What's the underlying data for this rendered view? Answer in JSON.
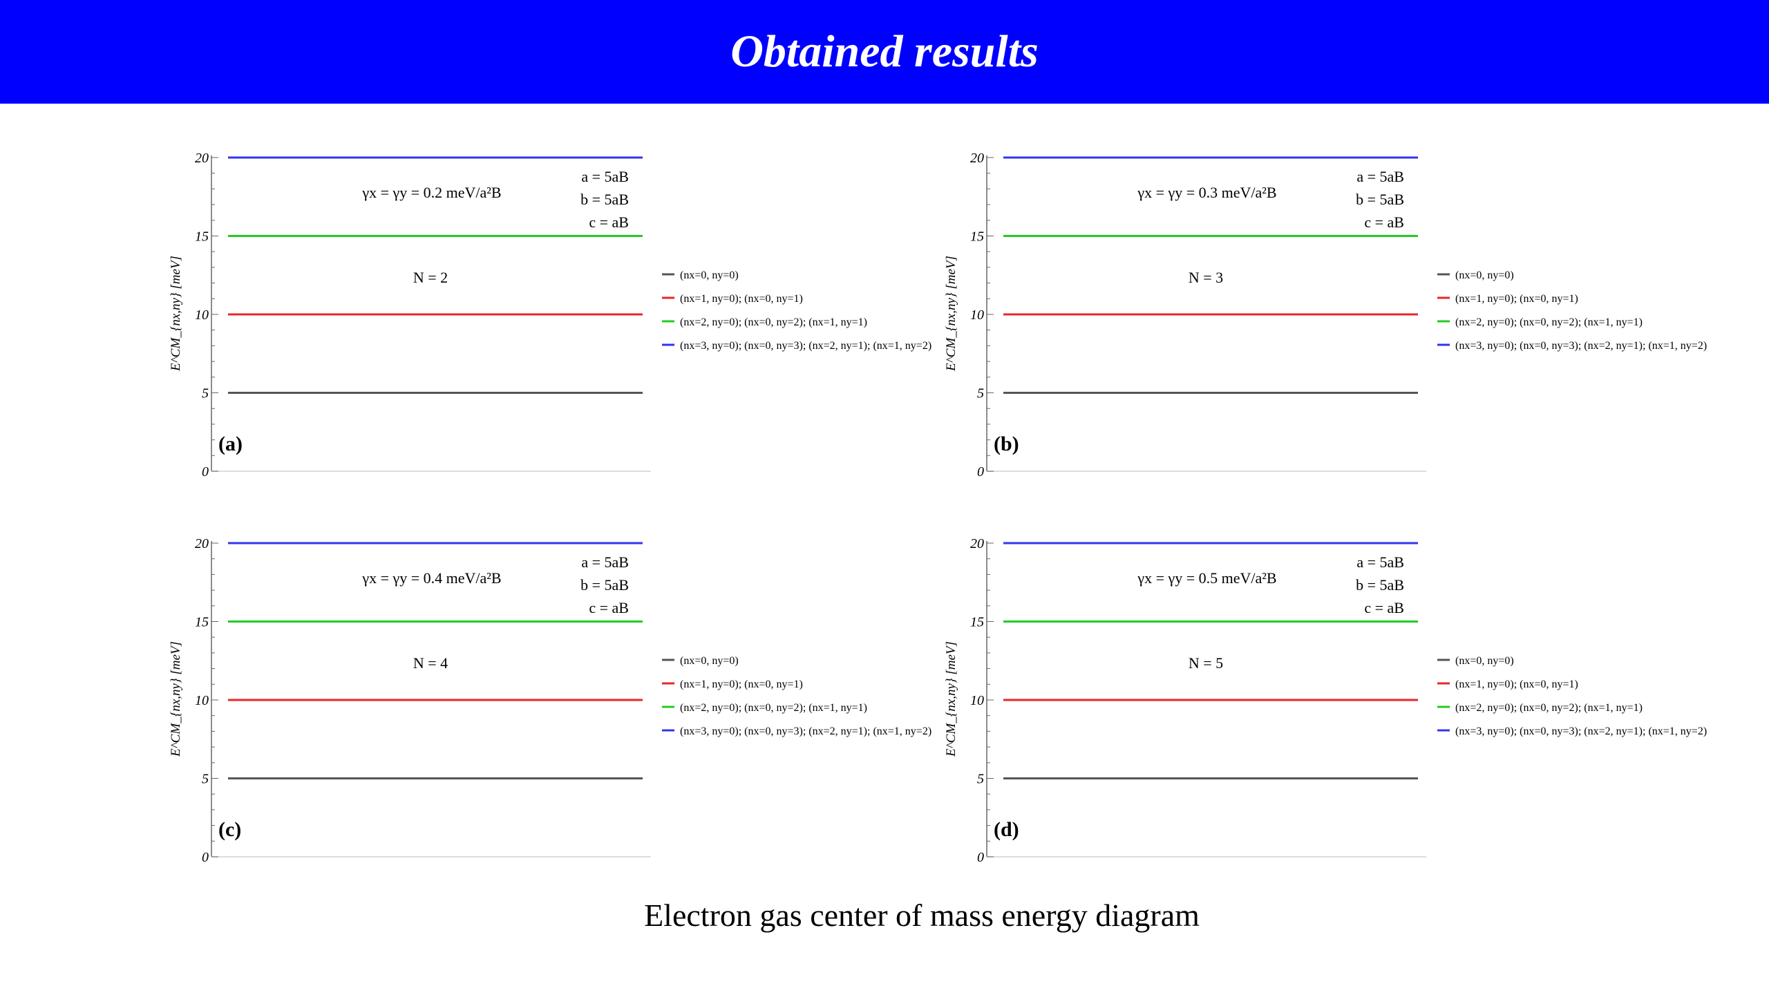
{
  "header": {
    "title": "Obtained results",
    "background": "#0000ff"
  },
  "caption": "Electron gas center of mass energy diagram",
  "chart_data": [
    {
      "type": "line",
      "panel_label": "(a)",
      "gamma_label": "γx = γy = 0.2 meV/a²B",
      "params": [
        "a = 5aB",
        "b = 5aB",
        "c = aB"
      ],
      "n_label": "N = 2",
      "ylabel": "E^CM_{nx,ny} [meV]",
      "ylim": [
        0,
        20
      ],
      "yticks": [
        "0",
        "5",
        "10",
        "15",
        "20"
      ],
      "series": [
        {
          "name": "(nx=0, ny=0)",
          "value": 5,
          "color": "#555555"
        },
        {
          "name": "(nx=1, ny=0); (nx=0, ny=1)",
          "value": 10,
          "color": "#e8262a"
        },
        {
          "name": "(nx=2, ny=0); (nx=0, ny=2); (nx=1, ny=1)",
          "value": 15,
          "color": "#22cc22"
        },
        {
          "name": "(nx=3, ny=0); (nx=0, ny=3); (nx=2, ny=1); (nx=1, ny=2)",
          "value": 20,
          "color": "#3333ee"
        }
      ]
    },
    {
      "type": "line",
      "panel_label": "(b)",
      "gamma_label": "γx = γy = 0.3 meV/a²B",
      "params": [
        "a = 5aB",
        "b = 5aB",
        "c = aB"
      ],
      "n_label": "N = 3",
      "ylabel": "E^CM_{nx,ny} [meV]",
      "ylim": [
        0,
        20
      ],
      "yticks": [
        "0",
        "5",
        "10",
        "15",
        "20"
      ],
      "series": [
        {
          "name": "(nx=0, ny=0)",
          "value": 5,
          "color": "#555555"
        },
        {
          "name": "(nx=1, ny=0); (nx=0, ny=1)",
          "value": 10,
          "color": "#e8262a"
        },
        {
          "name": "(nx=2, ny=0); (nx=0, ny=2); (nx=1, ny=1)",
          "value": 15,
          "color": "#22cc22"
        },
        {
          "name": "(nx=3, ny=0); (nx=0, ny=3); (nx=2, ny=1); (nx=1, ny=2)",
          "value": 20,
          "color": "#3333ee"
        }
      ]
    },
    {
      "type": "line",
      "panel_label": "(c)",
      "gamma_label": "γx = γy = 0.4 meV/a²B",
      "params": [
        "a = 5aB",
        "b = 5aB",
        "c = aB"
      ],
      "n_label": "N = 4",
      "ylabel": "E^CM_{nx,ny} [meV]",
      "ylim": [
        0,
        20
      ],
      "yticks": [
        "0",
        "5",
        "10",
        "15",
        "20"
      ],
      "series": [
        {
          "name": "(nx=0, ny=0)",
          "value": 5,
          "color": "#555555"
        },
        {
          "name": "(nx=1, ny=0); (nx=0, ny=1)",
          "value": 10,
          "color": "#e8262a"
        },
        {
          "name": "(nx=2, ny=0); (nx=0, ny=2); (nx=1, ny=1)",
          "value": 15,
          "color": "#22cc22"
        },
        {
          "name": "(nx=3, ny=0); (nx=0, ny=3); (nx=2, ny=1); (nx=1, ny=2)",
          "value": 20,
          "color": "#3333ee"
        }
      ]
    },
    {
      "type": "line",
      "panel_label": "(d)",
      "gamma_label": "γx = γy = 0.5 meV/a²B",
      "params": [
        "a = 5aB",
        "b = 5aB",
        "c = aB"
      ],
      "n_label": "N = 5",
      "ylabel": "E^CM_{nx,ny} [meV]",
      "ylim": [
        0,
        20
      ],
      "yticks": [
        "0",
        "5",
        "10",
        "15",
        "20"
      ],
      "series": [
        {
          "name": "(nx=0, ny=0)",
          "value": 5,
          "color": "#555555"
        },
        {
          "name": "(nx=1, ny=0); (nx=0, ny=1)",
          "value": 10,
          "color": "#e8262a"
        },
        {
          "name": "(nx=2, ny=0); (nx=0, ny=2); (nx=1, ny=1)",
          "value": 15,
          "color": "#22cc22"
        },
        {
          "name": "(nx=3, ny=0); (nx=0, ny=3); (nx=2, ny=1); (nx=1, ny=2)",
          "value": 20,
          "color": "#3333ee"
        }
      ]
    }
  ]
}
